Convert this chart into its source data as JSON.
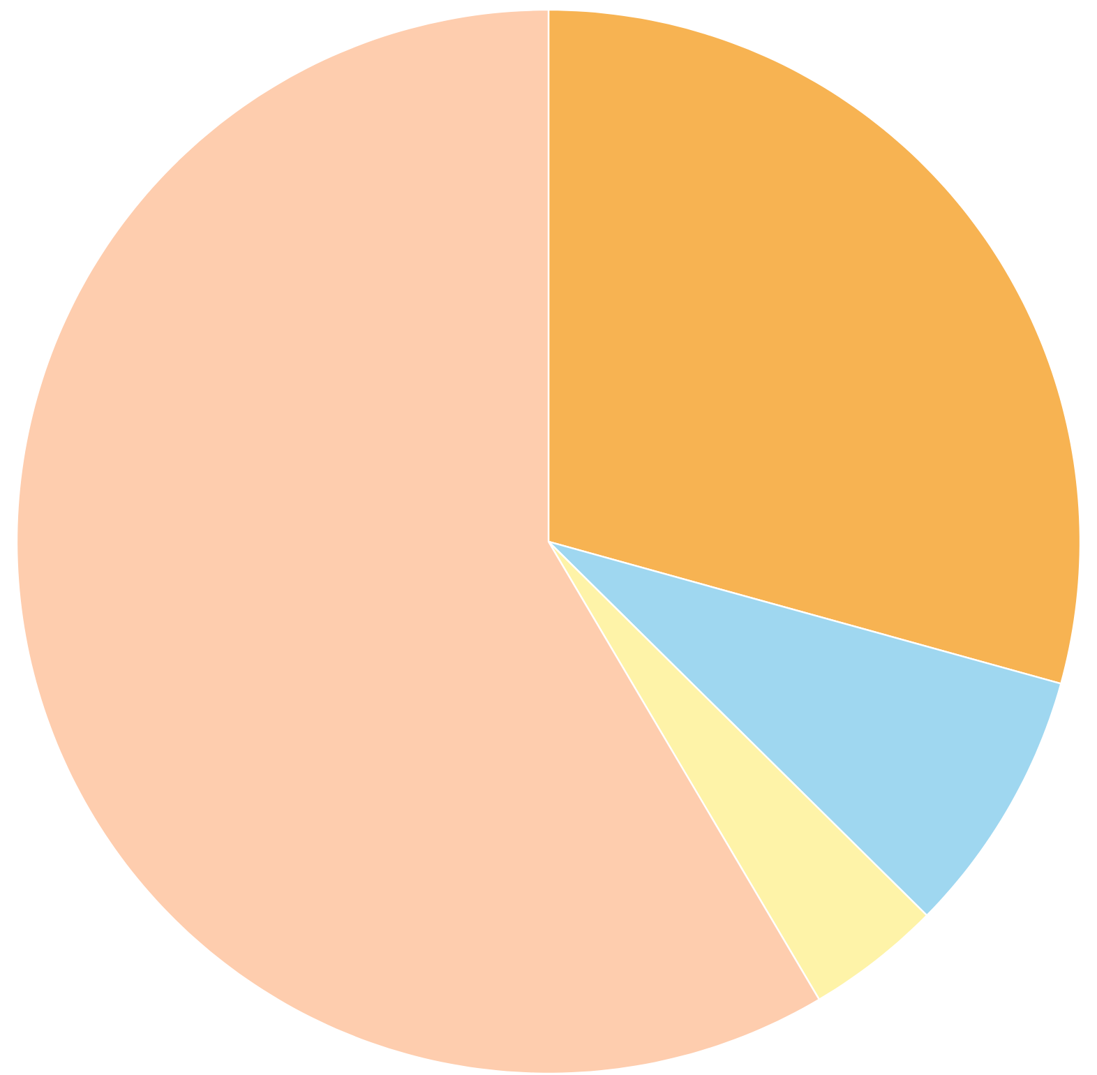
{
  "chart_data": {
    "type": "pie",
    "categories": [
      null,
      null,
      null,
      null
    ],
    "values": [
      29.3,
      8.1,
      4.1,
      58.5
    ],
    "colors": [
      "#f7b352",
      "#9fd7f0",
      "#fef3a8",
      "#fecdae"
    ]
  }
}
